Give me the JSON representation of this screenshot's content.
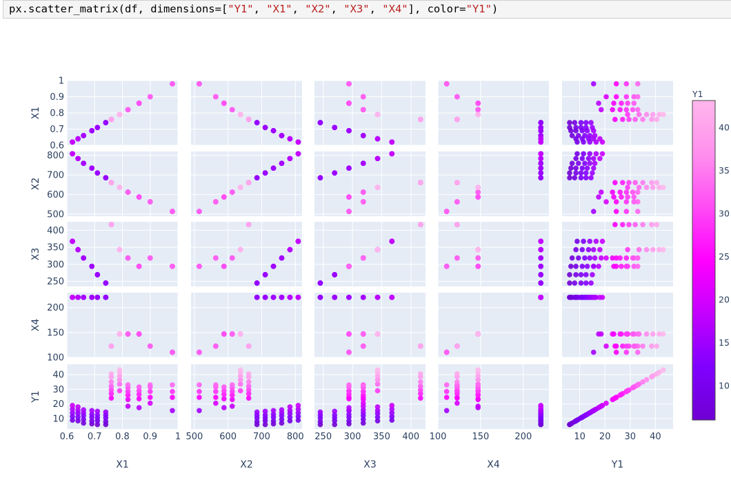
{
  "code": {
    "parts": [
      {
        "t": "px.scatter_matrix(df, dimensions=[",
        "k": "plain"
      },
      {
        "t": "\"Y1\"",
        "k": "str"
      },
      {
        "t": ", ",
        "k": "plain"
      },
      {
        "t": "\"X1\"",
        "k": "str"
      },
      {
        "t": ", ",
        "k": "plain"
      },
      {
        "t": "\"X2\"",
        "k": "str"
      },
      {
        "t": ", ",
        "k": "plain"
      },
      {
        "t": "\"X3\"",
        "k": "str"
      },
      {
        "t": ", ",
        "k": "plain"
      },
      {
        "t": "\"X4\"",
        "k": "str"
      },
      {
        "t": "], color=",
        "k": "plain"
      },
      {
        "t": "\"Y1\"",
        "k": "str"
      },
      {
        "t": ")",
        "k": "plain"
      }
    ]
  },
  "chart_data": {
    "type": "scatter",
    "dimensions": [
      "X1",
      "X2",
      "X3",
      "X4",
      "Y1"
    ],
    "color_by": "Y1",
    "axes": {
      "X1": {
        "range": [
          0.6,
          1.0
        ],
        "ticks": [
          0.6,
          0.7,
          0.8,
          0.9,
          1
        ],
        "tick_labels": [
          "0.6",
          "0.7",
          "0.8",
          "0.9",
          "1"
        ]
      },
      "X2": {
        "range": [
          490,
          820
        ],
        "ticks": [
          500,
          600,
          700,
          800
        ],
        "tick_labels": [
          "500",
          "600",
          "700",
          "800"
        ]
      },
      "X3": {
        "range": [
          235,
          425
        ],
        "ticks": [
          250,
          300,
          350,
          400
        ],
        "tick_labels": [
          "250",
          "300",
          "350",
          "400"
        ]
      },
      "X4": {
        "range": [
          100,
          230
        ],
        "ticks": [
          100,
          150,
          200
        ],
        "tick_labels": [
          "100",
          "150",
          "200"
        ]
      },
      "Y1": {
        "range": [
          3,
          47
        ],
        "ticks": [
          10,
          20,
          30,
          40
        ],
        "tick_labels": [
          "10",
          "20",
          "30",
          "40"
        ]
      }
    },
    "building_types": [
      {
        "X1": 0.98,
        "X2": 514.5,
        "X3": 294,
        "X4": 110.25
      },
      {
        "X1": 0.9,
        "X2": 563.5,
        "X3": 318.5,
        "X4": 122.5
      },
      {
        "X1": 0.86,
        "X2": 588.0,
        "X3": 294,
        "X4": 147.0
      },
      {
        "X1": 0.82,
        "X2": 612.5,
        "X3": 318.5,
        "X4": 147.0
      },
      {
        "X1": 0.79,
        "X2": 637.0,
        "X3": 343,
        "X4": 147.0
      },
      {
        "X1": 0.76,
        "X2": 661.5,
        "X3": 416.5,
        "X4": 122.5
      },
      {
        "X1": 0.74,
        "X2": 686.0,
        "X3": 245,
        "X4": 220.5
      },
      {
        "X1": 0.71,
        "X2": 710.5,
        "X3": 269.5,
        "X4": 220.5
      },
      {
        "X1": 0.69,
        "X2": 735.0,
        "X3": 294,
        "X4": 220.5
      },
      {
        "X1": 0.66,
        "X2": 759.5,
        "X3": 318.5,
        "X4": 220.5
      },
      {
        "X1": 0.64,
        "X2": 784.0,
        "X3": 343,
        "X4": 220.5
      },
      {
        "X1": 0.62,
        "X2": 808.5,
        "X3": 367.5,
        "X4": 220.5
      }
    ],
    "Y1_values_by_type": [
      [
        15.5,
        24.5,
        28.5,
        33.0
      ],
      [
        20.5,
        24.5,
        28.5,
        31.5,
        33.0
      ],
      [
        17.5,
        23.5,
        26.5,
        29.0,
        31.5
      ],
      [
        18.5,
        23.0,
        26.0,
        28.5,
        31.0,
        33.0
      ],
      [
        29.0,
        33.5,
        36.5,
        39.0,
        41.5,
        43.1
      ],
      [
        24.0,
        27.0,
        29.5,
        32.0,
        35.0,
        38.5,
        40.5
      ],
      [
        6.0,
        8.0,
        10.5,
        12.5,
        14.5
      ],
      [
        6.0,
        8.5,
        10.5,
        12.5,
        15.0
      ],
      [
        6.5,
        8.5,
        11.0,
        13.0,
        15.5
      ],
      [
        7.0,
        9.5,
        12.0,
        14.0,
        16.0
      ],
      [
        8.5,
        11.0,
        13.5,
        15.5,
        18.0
      ],
      [
        9.0,
        11.5,
        14.0,
        16.5,
        19.0
      ]
    ],
    "colorbar": {
      "title": "Y1",
      "range": [
        6,
        43.1
      ],
      "ticks": [
        10,
        15,
        20,
        25,
        30,
        35,
        40
      ],
      "tick_labels": [
        "10",
        "15",
        "20",
        "25",
        "30",
        "35",
        "40"
      ],
      "colors": [
        "#6f00d2",
        "#8000ff",
        "#c400ff",
        "#ff00ff",
        "#ff4cf5",
        "#ff90ed",
        "#ffb7ec"
      ]
    },
    "plot_bg": "#e5ecf6",
    "grid_color": "#ffffff"
  }
}
